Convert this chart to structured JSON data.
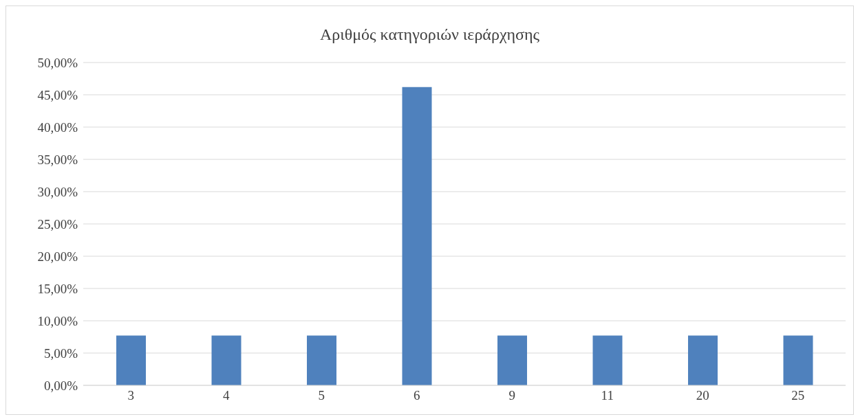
{
  "chart_data": {
    "type": "bar",
    "title": "Αριθμός κατηγοριών ιεράρχησης",
    "categories": [
      "3",
      "4",
      "5",
      "6",
      "9",
      "11",
      "20",
      "25"
    ],
    "values": [
      7.7,
      7.7,
      7.7,
      46.2,
      7.7,
      7.7,
      7.7,
      7.7
    ],
    "color": "#4f81bd",
    "ylim": [
      0,
      50
    ],
    "yticks": [
      {
        "value": 0,
        "label": "0,00%"
      },
      {
        "value": 5,
        "label": "5,00%"
      },
      {
        "value": 10,
        "label": "10,00%"
      },
      {
        "value": 15,
        "label": "15,00%"
      },
      {
        "value": 20,
        "label": "20,00%"
      },
      {
        "value": 25,
        "label": "25,00%"
      },
      {
        "value": 30,
        "label": "30,00%"
      },
      {
        "value": 35,
        "label": "35,00%"
      },
      {
        "value": 40,
        "label": "40,00%"
      },
      {
        "value": 45,
        "label": "45,00%"
      },
      {
        "value": 50,
        "label": "50,00%"
      }
    ],
    "grid": "y"
  }
}
